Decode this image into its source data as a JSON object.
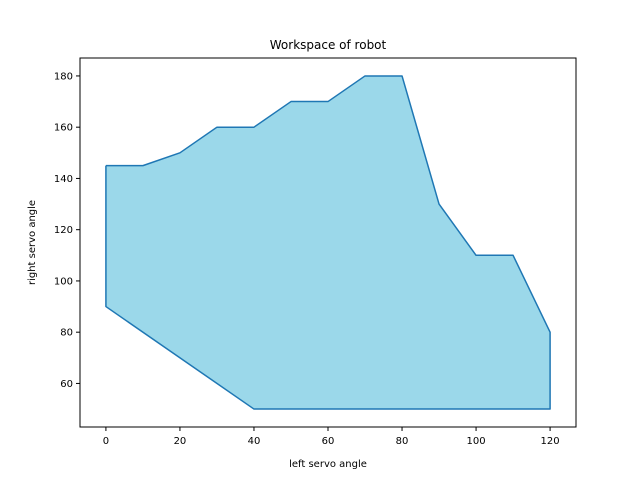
{
  "chart_data": {
    "type": "area",
    "title": "Workspace of robot",
    "xlabel": "left servo angle",
    "ylabel": "right servo angle",
    "xlim": [
      -7,
      127
    ],
    "ylim": [
      43,
      187
    ],
    "xticks": [
      0,
      20,
      40,
      60,
      80,
      100,
      120
    ],
    "yticks": [
      60,
      80,
      100,
      120,
      140,
      160,
      180
    ],
    "grid": false,
    "series": [
      {
        "fill_color": "#9bd8ea",
        "line_color": "#1f77b4",
        "x": [
          0,
          10,
          20,
          30,
          40,
          50,
          60,
          70,
          80,
          90,
          100,
          110,
          120,
          120,
          40,
          0,
          0
        ],
        "y": [
          145,
          145,
          150,
          160,
          160,
          170,
          170,
          180,
          180,
          130,
          110,
          110,
          80,
          50,
          50,
          90,
          145
        ]
      }
    ]
  }
}
